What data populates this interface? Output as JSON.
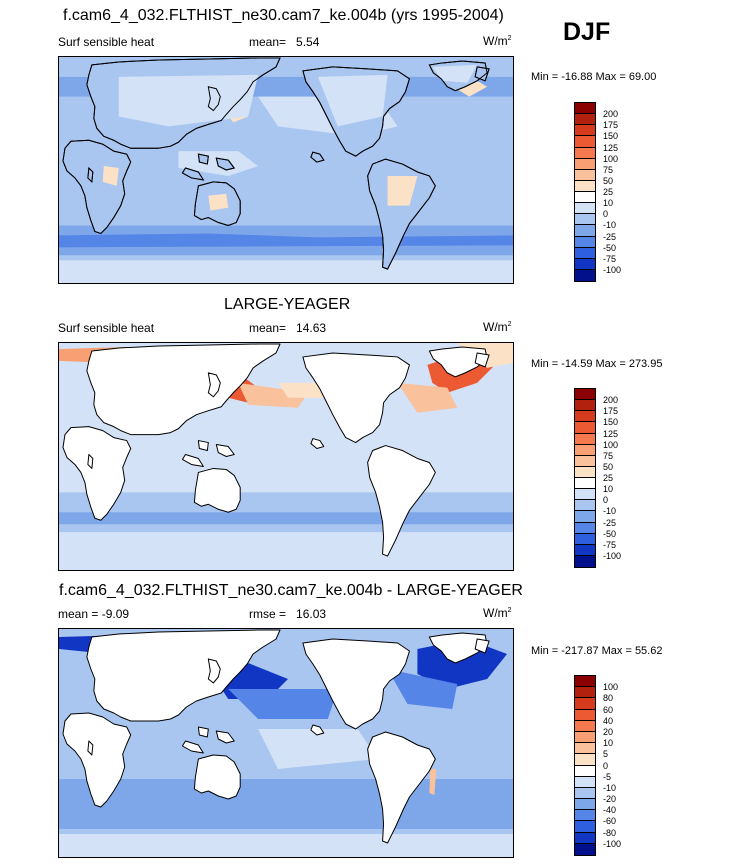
{
  "season": "DJF",
  "panels": [
    {
      "id": "p1",
      "title": "f.cam6_4_032.FLTHIST_ne30.cam7_ke.004b (yrs 1995-2004)",
      "left_label": "Surf sensible heat",
      "stat_label": "mean=",
      "stat_value": "5.54",
      "unit": "W/m",
      "unit_sup": "2",
      "min_max": "Min = -16.88 Max =  69.00",
      "colorbar": {
        "ticks": [
          "200",
          "175",
          "150",
          "125",
          "100",
          "75",
          "50",
          "25",
          "10",
          "0",
          "-10",
          "-25",
          "-50",
          "-75",
          "-100"
        ],
        "colors": [
          "#8b0000",
          "#b2200e",
          "#d63a1c",
          "#ec5a34",
          "#f5794f",
          "#f8a074",
          "#f9c19c",
          "#fbe2c6",
          "#ffffff",
          "#d3e2f7",
          "#a9c6f0",
          "#7ea7ea",
          "#5585e6",
          "#2d5fdf",
          "#1236c4",
          "#03108c"
        ]
      }
    },
    {
      "id": "p2",
      "title": "LARGE-YEAGER",
      "left_label": "Surf sensible heat",
      "stat_label": "mean=",
      "stat_value": "14.63",
      "unit": "W/m",
      "unit_sup": "2",
      "min_max": "Min = -14.59 Max = 273.95",
      "colorbar": {
        "ticks": [
          "200",
          "175",
          "150",
          "125",
          "100",
          "75",
          "50",
          "25",
          "10",
          "0",
          "-10",
          "-25",
          "-50",
          "-75",
          "-100"
        ],
        "colors": [
          "#8b0000",
          "#b2200e",
          "#d63a1c",
          "#ec5a34",
          "#f5794f",
          "#f8a074",
          "#f9c19c",
          "#fbe2c6",
          "#ffffff",
          "#d3e2f7",
          "#a9c6f0",
          "#7ea7ea",
          "#5585e6",
          "#2d5fdf",
          "#1236c4",
          "#03108c"
        ]
      }
    },
    {
      "id": "p3",
      "title": "f.cam6_4_032.FLTHIST_ne30.cam7_ke.004b - LARGE-YEAGER",
      "left_label": "mean =  -9.09",
      "stat_label": "rmse =",
      "stat_value": "16.03",
      "unit": "W/m",
      "unit_sup": "2",
      "min_max": "Min = -217.87 Max =  55.62",
      "colorbar": {
        "ticks": [
          "100",
          "80",
          "60",
          "40",
          "20",
          "10",
          "5",
          "0",
          "-5",
          "-10",
          "-20",
          "-40",
          "-60",
          "-80",
          "-100"
        ],
        "colors": [
          "#8b0000",
          "#b2200e",
          "#d63a1c",
          "#ec5a34",
          "#f5794f",
          "#f8a074",
          "#f9c19c",
          "#fbe2c6",
          "#ffffff",
          "#d3e2f7",
          "#a9c6f0",
          "#7ea7ea",
          "#5585e6",
          "#2d5fdf",
          "#1236c4",
          "#03108c"
        ]
      }
    }
  ]
}
